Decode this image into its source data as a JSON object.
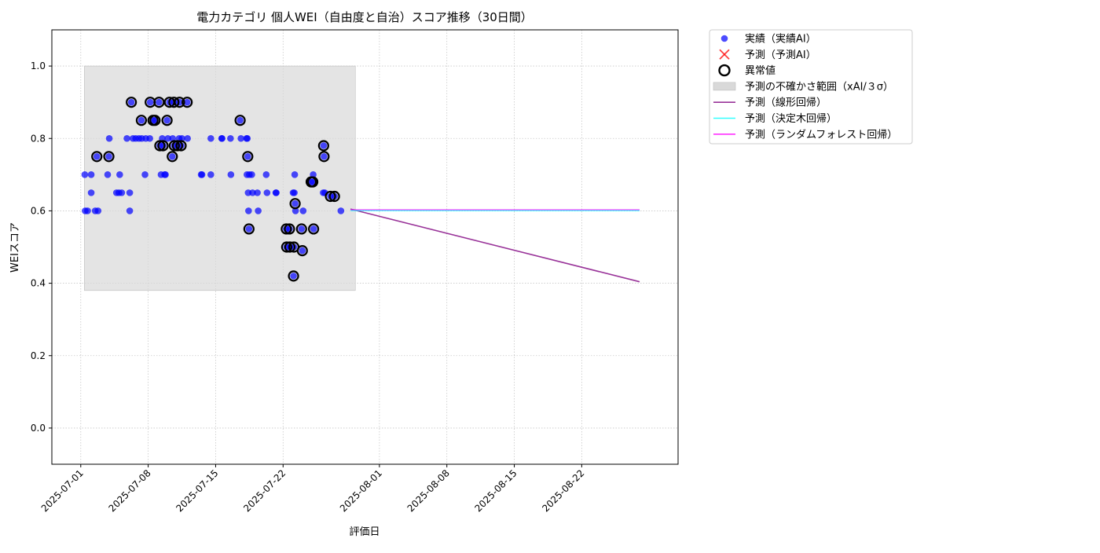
{
  "chart_data": {
    "type": "scatter",
    "title": "電力カテゴリ 個人WEI（自由度と自治）スコア推移（30日間）",
    "xlabel": "評価日",
    "ylabel": "WEIスコア",
    "xlim": [
      "2025-06-28",
      "2025-09-01"
    ],
    "ylim": [
      -0.1,
      1.1
    ],
    "grid": true,
    "legend_position": "outside-top-right",
    "x_ticks": [
      "2025-07-01",
      "2025-07-08",
      "2025-07-15",
      "2025-07-22",
      "2025-08-01",
      "2025-08-08",
      "2025-08-15",
      "2025-08-22"
    ],
    "y_ticks": [
      0.0,
      0.2,
      0.4,
      0.6,
      0.8,
      1.0
    ],
    "uncertainty_band": {
      "x_start": "2025-07-01 09:00",
      "x_end": "2025-07-29 12:00",
      "y_low": 0.38,
      "y_high": 1.0
    },
    "legend": [
      {
        "label": "実績（実績AI）",
        "kind": "scatter",
        "color": "#0000ff"
      },
      {
        "label": "予測（予測AI）",
        "kind": "cross",
        "color": "#ff0000"
      },
      {
        "label": "異常値",
        "kind": "ring",
        "color": "#000000"
      },
      {
        "label": "予測の不確かさ範囲（xAI/３σ）",
        "kind": "band",
        "color": "#d9d9d9"
      },
      {
        "label": "予測（線形回帰）",
        "kind": "line",
        "color": "#800080"
      },
      {
        "label": "予測（決定木回帰）",
        "kind": "line",
        "color": "#00ffff"
      },
      {
        "label": "予測（ランダムフォレスト回帰）",
        "kind": "line",
        "color": "#ff00ff"
      }
    ],
    "actual": [
      {
        "x": "2025-07-01 10:00",
        "y": 0.7
      },
      {
        "x": "2025-07-01 11:00",
        "y": 0.6
      },
      {
        "x": "2025-07-01 17:00",
        "y": 0.6
      },
      {
        "x": "2025-07-02 02:00",
        "y": 0.7
      },
      {
        "x": "2025-07-02 02:00",
        "y": 0.65
      },
      {
        "x": "2025-07-02 12:00",
        "y": 0.6
      },
      {
        "x": "2025-07-02 16:00",
        "y": 0.75
      },
      {
        "x": "2025-07-02 19:00",
        "y": 0.6
      },
      {
        "x": "2025-07-03 19:00",
        "y": 0.7
      },
      {
        "x": "2025-07-03 22:00",
        "y": 0.75
      },
      {
        "x": "2025-07-03 23:00",
        "y": 0.8
      },
      {
        "x": "2025-07-04 17:00",
        "y": 0.65
      },
      {
        "x": "2025-07-04 23:00",
        "y": 0.65
      },
      {
        "x": "2025-07-05 01:00",
        "y": 0.7
      },
      {
        "x": "2025-07-05 06:00",
        "y": 0.65
      },
      {
        "x": "2025-07-05 19:00",
        "y": 0.8
      },
      {
        "x": "2025-07-06 02:00",
        "y": 0.65
      },
      {
        "x": "2025-07-06 02:00",
        "y": 0.6
      },
      {
        "x": "2025-07-06 06:00",
        "y": 0.9
      },
      {
        "x": "2025-07-06 10:00",
        "y": 0.8
      },
      {
        "x": "2025-07-06 17:00",
        "y": 0.8
      },
      {
        "x": "2025-07-07 01:00",
        "y": 0.8
      },
      {
        "x": "2025-07-07 07:00",
        "y": 0.85
      },
      {
        "x": "2025-07-07 08:00",
        "y": 0.8
      },
      {
        "x": "2025-07-07 16:00",
        "y": 0.7
      },
      {
        "x": "2025-07-07 18:00",
        "y": 0.8
      },
      {
        "x": "2025-07-08 04:00",
        "y": 0.8
      },
      {
        "x": "2025-07-08 05:00",
        "y": 0.9
      },
      {
        "x": "2025-07-08 12:00",
        "y": 0.85
      },
      {
        "x": "2025-07-08 17:00",
        "y": 0.85
      },
      {
        "x": "2025-07-09 03:00",
        "y": 0.9
      },
      {
        "x": "2025-07-09 05:00",
        "y": 0.78
      },
      {
        "x": "2025-07-09 08:00",
        "y": 0.7
      },
      {
        "x": "2025-07-09 11:00",
        "y": 0.8
      },
      {
        "x": "2025-07-09 13:00",
        "y": 0.78
      },
      {
        "x": "2025-07-09 17:00",
        "y": 0.7
      },
      {
        "x": "2025-07-09 19:00",
        "y": 0.7
      },
      {
        "x": "2025-07-09 23:00",
        "y": 0.85
      },
      {
        "x": "2025-07-10 01:00",
        "y": 0.8
      },
      {
        "x": "2025-07-10 05:00",
        "y": 0.9
      },
      {
        "x": "2025-07-10 12:00",
        "y": 0.75
      },
      {
        "x": "2025-07-10 13:00",
        "y": 0.8
      },
      {
        "x": "2025-07-10 16:00",
        "y": 0.9
      },
      {
        "x": "2025-07-10 17:00",
        "y": 0.78
      },
      {
        "x": "2025-07-11 01:00",
        "y": 0.78
      },
      {
        "x": "2025-07-11 05:00",
        "y": 0.8
      },
      {
        "x": "2025-07-11 06:00",
        "y": 0.9
      },
      {
        "x": "2025-07-11 10:00",
        "y": 0.78
      },
      {
        "x": "2025-07-11 12:00",
        "y": 0.8
      },
      {
        "x": "2025-07-12 01:00",
        "y": 0.9
      },
      {
        "x": "2025-07-12 02:00",
        "y": 0.8
      },
      {
        "x": "2025-07-13 12:00",
        "y": 0.7
      },
      {
        "x": "2025-07-13 14:00",
        "y": 0.7
      },
      {
        "x": "2025-07-14 12:00",
        "y": 0.7
      },
      {
        "x": "2025-07-14 12:00",
        "y": 0.8
      },
      {
        "x": "2025-07-15 15:00",
        "y": 0.8
      },
      {
        "x": "2025-07-15 16:00",
        "y": 0.8
      },
      {
        "x": "2025-07-16 13:00",
        "y": 0.8
      },
      {
        "x": "2025-07-16 14:00",
        "y": 0.7
      },
      {
        "x": "2025-07-17 13:00",
        "y": 0.85
      },
      {
        "x": "2025-07-17 15:00",
        "y": 0.8
      },
      {
        "x": "2025-07-18 05:00",
        "y": 0.8
      },
      {
        "x": "2025-07-18 06:00",
        "y": 0.7
      },
      {
        "x": "2025-07-18 07:00",
        "y": 0.8
      },
      {
        "x": "2025-07-18 08:00",
        "y": 0.75
      },
      {
        "x": "2025-07-18 09:00",
        "y": 0.65
      },
      {
        "x": "2025-07-18 10:00",
        "y": 0.6
      },
      {
        "x": "2025-07-18 11:00",
        "y": 0.55
      },
      {
        "x": "2025-07-18 12:00",
        "y": 0.7
      },
      {
        "x": "2025-07-18 18:00",
        "y": 0.7
      },
      {
        "x": "2025-07-18 20:00",
        "y": 0.65
      },
      {
        "x": "2025-07-19 08:00",
        "y": 0.65
      },
      {
        "x": "2025-07-19 10:00",
        "y": 0.6
      },
      {
        "x": "2025-07-20 06:00",
        "y": 0.7
      },
      {
        "x": "2025-07-20 08:00",
        "y": 0.65
      },
      {
        "x": "2025-07-21 06:00",
        "y": 0.65
      },
      {
        "x": "2025-07-21 07:00",
        "y": 0.65
      },
      {
        "x": "2025-07-22 08:00",
        "y": 0.55
      },
      {
        "x": "2025-07-22 09:00",
        "y": 0.5
      },
      {
        "x": "2025-07-22 16:00",
        "y": 0.55
      },
      {
        "x": "2025-07-22 17:00",
        "y": 0.5
      },
      {
        "x": "2025-07-23 01:00",
        "y": 0.65
      },
      {
        "x": "2025-07-23 02:00",
        "y": 0.42
      },
      {
        "x": "2025-07-23 03:00",
        "y": 0.5
      },
      {
        "x": "2025-07-23 04:00",
        "y": 0.65
      },
      {
        "x": "2025-07-23 05:00",
        "y": 0.7
      },
      {
        "x": "2025-07-23 06:00",
        "y": 0.62
      },
      {
        "x": "2025-07-23 07:00",
        "y": 0.6
      },
      {
        "x": "2025-07-23 22:00",
        "y": 0.55
      },
      {
        "x": "2025-07-24 00:00",
        "y": 0.49
      },
      {
        "x": "2025-07-24 02:00",
        "y": 0.6
      },
      {
        "x": "2025-07-24 22:00",
        "y": 0.68
      },
      {
        "x": "2025-07-25 02:00",
        "y": 0.68
      },
      {
        "x": "2025-07-25 03:00",
        "y": 0.7
      },
      {
        "x": "2025-07-25 04:00",
        "y": 0.55
      },
      {
        "x": "2025-07-26 04:00",
        "y": 0.65
      },
      {
        "x": "2025-07-26 05:00",
        "y": 0.78
      },
      {
        "x": "2025-07-26 06:00",
        "y": 0.75
      },
      {
        "x": "2025-07-26 08:00",
        "y": 0.65
      },
      {
        "x": "2025-07-26 22:00",
        "y": 0.64
      },
      {
        "x": "2025-07-27 08:00",
        "y": 0.64
      },
      {
        "x": "2025-07-28 00:00",
        "y": 0.6
      }
    ],
    "anomalies": [
      {
        "x": "2025-07-02 16:00",
        "y": 0.75
      },
      {
        "x": "2025-07-03 22:00",
        "y": 0.75
      },
      {
        "x": "2025-07-06 06:00",
        "y": 0.9
      },
      {
        "x": "2025-07-07 07:00",
        "y": 0.85
      },
      {
        "x": "2025-07-08 05:00",
        "y": 0.9
      },
      {
        "x": "2025-07-08 12:00",
        "y": 0.85
      },
      {
        "x": "2025-07-08 17:00",
        "y": 0.85
      },
      {
        "x": "2025-07-09 03:00",
        "y": 0.9
      },
      {
        "x": "2025-07-09 05:00",
        "y": 0.78
      },
      {
        "x": "2025-07-09 13:00",
        "y": 0.78
      },
      {
        "x": "2025-07-09 23:00",
        "y": 0.85
      },
      {
        "x": "2025-07-10 05:00",
        "y": 0.9
      },
      {
        "x": "2025-07-10 12:00",
        "y": 0.75
      },
      {
        "x": "2025-07-10 16:00",
        "y": 0.9
      },
      {
        "x": "2025-07-10 17:00",
        "y": 0.78
      },
      {
        "x": "2025-07-11 01:00",
        "y": 0.78
      },
      {
        "x": "2025-07-11 06:00",
        "y": 0.9
      },
      {
        "x": "2025-07-11 10:00",
        "y": 0.78
      },
      {
        "x": "2025-07-12 01:00",
        "y": 0.9
      },
      {
        "x": "2025-07-17 13:00",
        "y": 0.85
      },
      {
        "x": "2025-07-18 08:00",
        "y": 0.75
      },
      {
        "x": "2025-07-18 11:00",
        "y": 0.55
      },
      {
        "x": "2025-07-22 08:00",
        "y": 0.55
      },
      {
        "x": "2025-07-22 09:00",
        "y": 0.5
      },
      {
        "x": "2025-07-22 16:00",
        "y": 0.55
      },
      {
        "x": "2025-07-22 17:00",
        "y": 0.5
      },
      {
        "x": "2025-07-23 02:00",
        "y": 0.42
      },
      {
        "x": "2025-07-23 03:00",
        "y": 0.5
      },
      {
        "x": "2025-07-23 06:00",
        "y": 0.62
      },
      {
        "x": "2025-07-23 22:00",
        "y": 0.55
      },
      {
        "x": "2025-07-24 00:00",
        "y": 0.49
      },
      {
        "x": "2025-07-24 22:00",
        "y": 0.68
      },
      {
        "x": "2025-07-25 02:00",
        "y": 0.68
      },
      {
        "x": "2025-07-25 04:00",
        "y": 0.55
      },
      {
        "x": "2025-07-26 05:00",
        "y": 0.78
      },
      {
        "x": "2025-07-26 06:00",
        "y": 0.75
      },
      {
        "x": "2025-07-26 22:00",
        "y": 0.64
      },
      {
        "x": "2025-07-27 08:00",
        "y": 0.64
      }
    ],
    "forecast_lines": [
      {
        "name": "予測（線形回帰）",
        "color": "#800080",
        "opacity": 0.8,
        "points": [
          {
            "x": "2025-07-29 00:00",
            "y": 0.605
          },
          {
            "x": "2025-08-28 00:00",
            "y": 0.404
          }
        ]
      },
      {
        "name": "予測（決定木回帰）",
        "color": "#00ffff",
        "opacity": 0.8,
        "points": [
          {
            "x": "2025-07-29 00:00",
            "y": 0.601
          },
          {
            "x": "2025-08-28 00:00",
            "y": 0.601
          }
        ]
      },
      {
        "name": "予測（ランダムフォレスト回帰）",
        "color": "#ff00ff",
        "opacity": 0.6,
        "points": [
          {
            "x": "2025-07-29 00:00",
            "y": 0.603
          },
          {
            "x": "2025-08-28 00:00",
            "y": 0.603
          }
        ]
      }
    ]
  }
}
